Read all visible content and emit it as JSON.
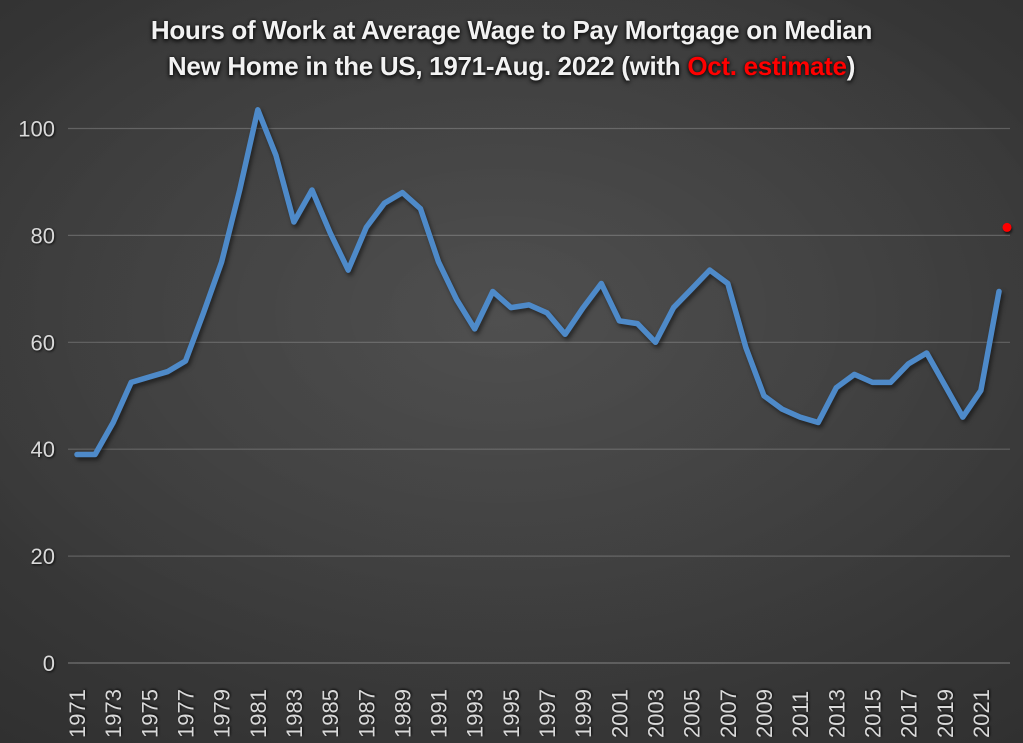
{
  "title": {
    "line1": "Hours of Work at Average Wage to Pay Mortgage on Median",
    "line2_prefix": "New Home in the US, 1971-Aug. 2022 (with ",
    "line2_highlight": "Oct. estimate",
    "line2_suffix": ")",
    "highlight_color": "#ff0000"
  },
  "colors": {
    "line": "#4e8ac9",
    "estimate_dot": "#ff0000",
    "axis_text": "#d9d9d9",
    "gridline": "rgba(255,255,255,0.20)",
    "axis_line": "rgba(255,255,255,0.30)",
    "title_text": "#f2f2f2"
  },
  "chart_data": {
    "type": "line",
    "title": "Hours of Work at Average Wage to Pay Mortgage on Median New Home in the US, 1971-Aug. 2022 (with Oct. estimate)",
    "x": [
      1971,
      1972,
      1973,
      1974,
      1975,
      1976,
      1977,
      1978,
      1979,
      1980,
      1981,
      1982,
      1983,
      1984,
      1985,
      1986,
      1987,
      1988,
      1989,
      1990,
      1991,
      1992,
      1993,
      1994,
      1995,
      1996,
      1997,
      1998,
      1999,
      2000,
      2001,
      2002,
      2003,
      2004,
      2005,
      2006,
      2007,
      2008,
      2009,
      2010,
      2011,
      2012,
      2013,
      2014,
      2015,
      2016,
      2017,
      2018,
      2019,
      2020,
      2021,
      2022
    ],
    "series": [
      {
        "name": "Hours of work at average wage",
        "values": [
          39,
          39,
          45,
          52.5,
          53.5,
          54.5,
          56.5,
          65.5,
          75,
          88.5,
          103.5,
          95,
          82.5,
          88.5,
          80.5,
          73.5,
          81.5,
          86,
          88,
          85,
          75,
          68,
          62.5,
          69.5,
          66.5,
          67,
          65.5,
          61.5,
          66.5,
          71,
          64,
          63.5,
          60,
          66.5,
          70,
          73.5,
          71,
          59,
          50,
          47.5,
          46,
          45,
          51.5,
          54,
          52.5,
          52.5,
          56,
          58,
          52,
          46,
          51,
          69.5
        ]
      }
    ],
    "estimate_point": {
      "label": "Oct. estimate",
      "value": 81.5
    },
    "yticks": [
      0,
      20,
      40,
      60,
      80,
      100
    ],
    "ylim": [
      0,
      100
    ],
    "xtick_years": [
      1971,
      1973,
      1975,
      1977,
      1979,
      1981,
      1983,
      1985,
      1987,
      1989,
      1991,
      1993,
      1995,
      1997,
      1999,
      2001,
      2003,
      2005,
      2007,
      2009,
      2011,
      2013,
      2015,
      2017,
      2019,
      2021
    ],
    "grid": true,
    "legend": "none",
    "x_labels_rotated_degrees": -90
  }
}
